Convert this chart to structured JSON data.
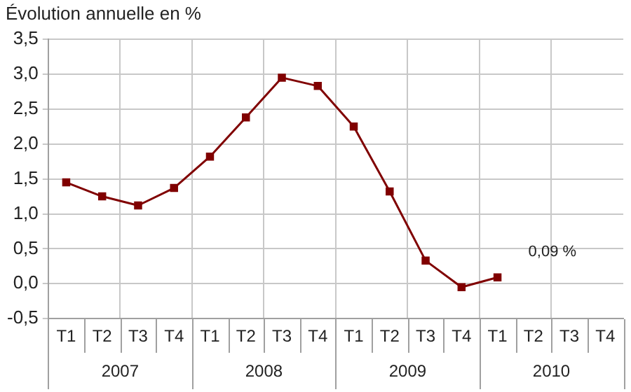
{
  "chart_data": {
    "type": "line",
    "title": "Évolution annuelle en %",
    "categories": [
      "T1",
      "T2",
      "T3",
      "T4",
      "T1",
      "T2",
      "T3",
      "T4",
      "T1",
      "T2",
      "T3",
      "T4",
      "T1",
      "T2",
      "T3",
      "T4"
    ],
    "series": [
      {
        "color": "#800000",
        "values": [
          1.45,
          1.25,
          1.12,
          1.37,
          1.82,
          2.38,
          2.95,
          2.83,
          2.25,
          1.32,
          0.33,
          -0.05,
          0.09,
          null,
          null,
          null
        ]
      }
    ],
    "annotations": [
      "0,09 %",
      "2007",
      "2008",
      "2009",
      "2010"
    ],
    "ylim": [
      -0.5,
      3.5
    ],
    "yticks": [
      {
        "value": -0.5,
        "label": "-0,5"
      },
      {
        "value": 0,
        "label": "0,0"
      },
      {
        "value": 0.5,
        "label": "0,5"
      },
      {
        "value": 1,
        "label": "1,0"
      },
      {
        "value": 1.5,
        "label": "1,5"
      },
      {
        "value": 2,
        "label": "2,0"
      },
      {
        "value": 2.5,
        "label": "2,5"
      },
      {
        "value": 3,
        "label": "3,0"
      },
      {
        "value": 3.5,
        "label": "3,5"
      }
    ],
    "grid": true,
    "marker": "square",
    "line_style": "solid",
    "legend": false
  }
}
